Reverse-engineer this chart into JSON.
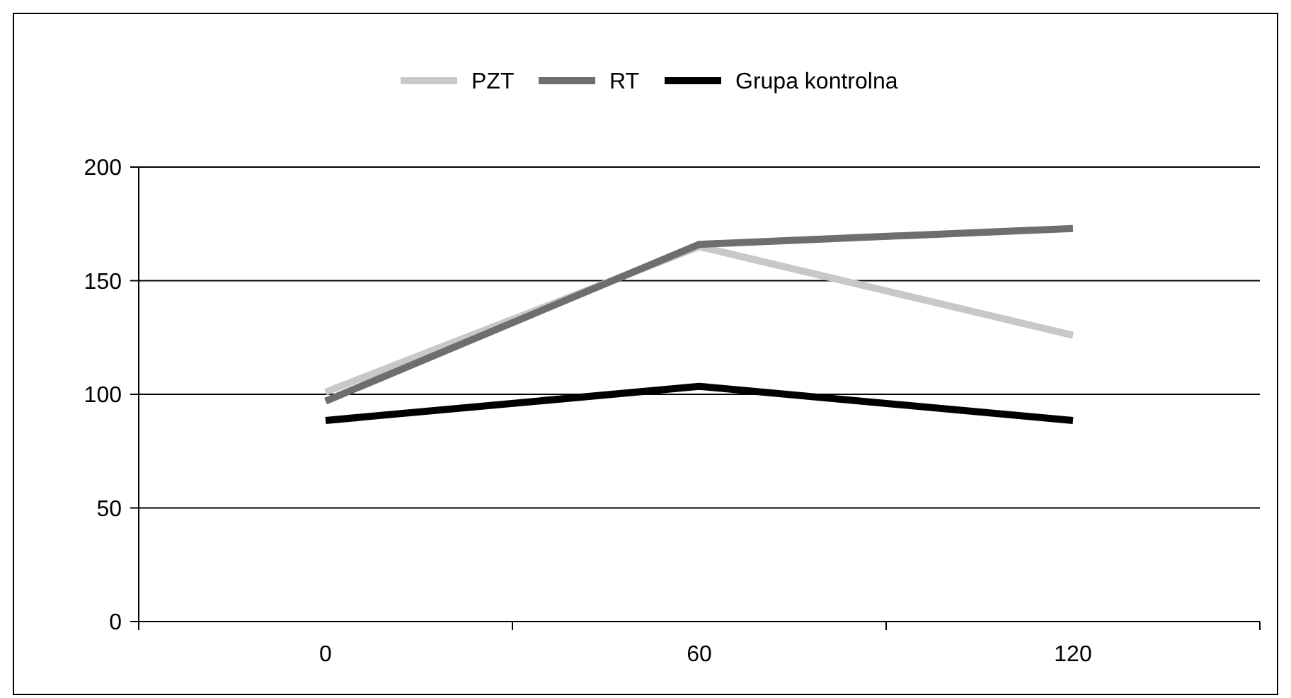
{
  "chart_data": {
    "type": "line",
    "categories": [
      "0",
      "60",
      "120"
    ],
    "series": [
      {
        "name": "PZT",
        "color": "#c8c8c8",
        "values": [
          101,
          165,
          126
        ]
      },
      {
        "name": "RT",
        "color": "#6e6e6e",
        "values": [
          97,
          166,
          173
        ]
      },
      {
        "name": "Grupa kontrolna",
        "color": "#000000",
        "values": [
          88.5,
          103.5,
          88.5
        ]
      }
    ],
    "ylim": [
      0,
      200
    ],
    "yticks": [
      0,
      50,
      100,
      150,
      200
    ],
    "grid": "y",
    "legend": "top",
    "marker": "none",
    "line_style": "solid"
  }
}
